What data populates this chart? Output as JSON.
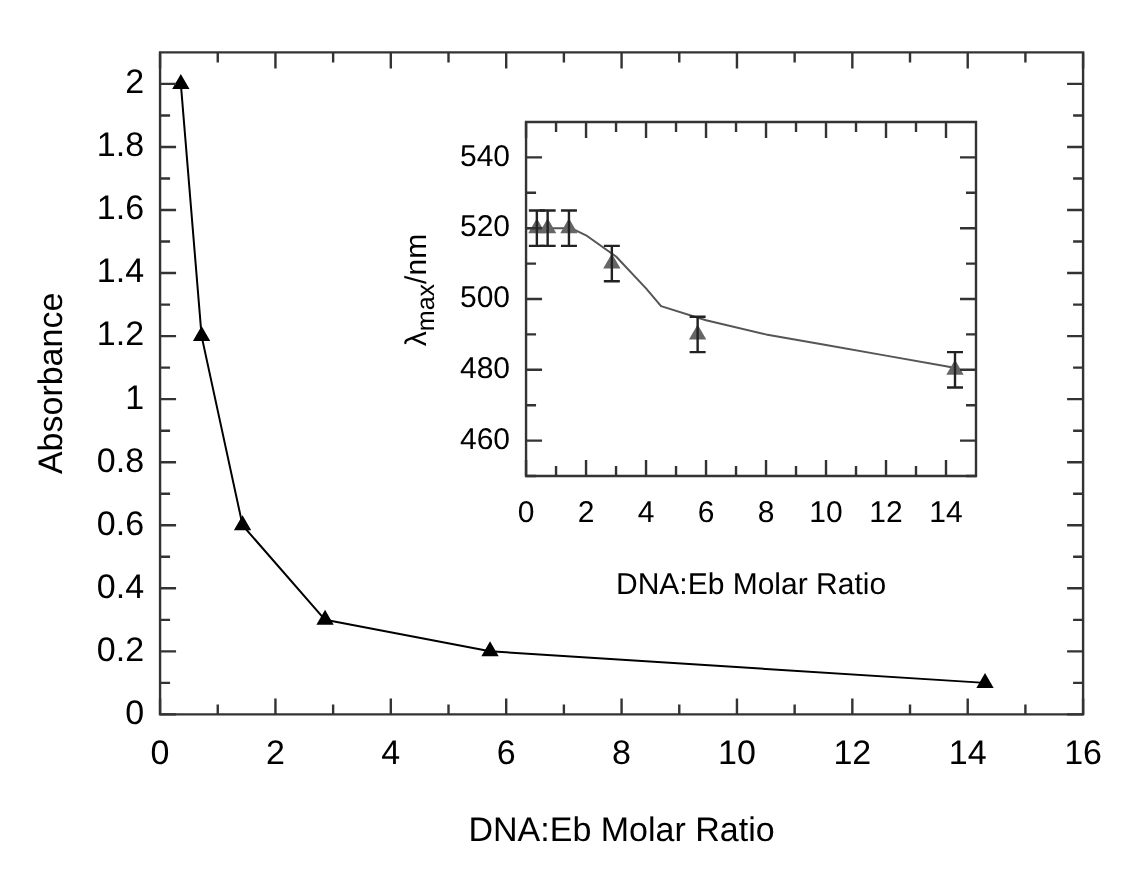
{
  "chart_data": [
    {
      "type": "line",
      "xlabel": "DNA:Eb Molar Ratio",
      "ylabel": "Absorbance",
      "x": [
        0.36,
        0.72,
        1.43,
        2.86,
        5.72,
        14.3
      ],
      "series": [
        {
          "color": "#000000",
          "values": [
            2,
            1.2,
            0.6,
            0.3,
            0.2,
            0.1
          ],
          "marker": "triangle"
        }
      ],
      "xlim": [
        0,
        16
      ],
      "xticks": [
        0,
        {
          "value": 1,
          "label": null
        },
        2,
        {
          "value": 3,
          "label": null
        },
        4,
        {
          "value": 5,
          "label": null
        },
        6,
        {
          "value": 7,
          "label": null
        },
        8,
        {
          "value": 9,
          "label": null
        },
        10,
        {
          "value": 11,
          "label": null
        },
        12,
        {
          "value": 13,
          "label": null
        },
        14,
        {
          "value": 15,
          "label": null
        },
        16
      ],
      "ylim": [
        0,
        2.1
      ],
      "yticks": [
        0,
        {
          "value": 0.1,
          "label": null
        },
        0.2,
        {
          "value": 0.3,
          "label": null
        },
        0.4,
        {
          "value": 0.5,
          "label": null
        },
        0.6,
        {
          "value": 0.7,
          "label": null
        },
        0.8,
        {
          "value": 0.9,
          "label": null
        },
        1,
        {
          "value": 1.1,
          "label": null
        },
        1.2,
        {
          "value": 1.3,
          "label": null
        },
        1.4,
        {
          "value": 1.5,
          "label": null
        },
        1.6,
        {
          "value": 1.7,
          "label": null
        },
        1.8,
        {
          "value": 1.9,
          "label": null
        },
        2
      ],
      "grid": false,
      "legend": false
    },
    {
      "type": "scatter",
      "xlabel": "DNA:Eb Molar Ratio",
      "ylabel": "λ$_{max}$/nm",
      "series": [
        {
          "color": "#666666",
          "marker": "triangle",
          "x": [
            0.36,
            0.72,
            1.43,
            2.86,
            5.72,
            14.3
          ],
          "values": [
            520,
            520,
            520,
            510,
            490,
            480
          ],
          "errors": [
            5,
            5,
            5,
            5,
            5,
            5
          ]
        },
        {
          "type": "line",
          "color": "#555555",
          "marker": "none",
          "x": [
            0,
            1,
            1.5,
            2,
            3,
            4,
            4.5,
            6,
            8,
            10,
            12,
            14,
            14.3
          ],
          "values": [
            520,
            520,
            520,
            518,
            512,
            503,
            498,
            494,
            490,
            487,
            484,
            481,
            480.5
          ]
        }
      ],
      "xlim": [
        0,
        15
      ],
      "xticks": [
        0,
        {
          "value": 1,
          "label": null
        },
        2,
        {
          "value": 3,
          "label": null
        },
        4,
        {
          "value": 5,
          "label": null
        },
        6,
        {
          "value": 7,
          "label": null
        },
        8,
        {
          "value": 9,
          "label": null
        },
        10,
        {
          "value": 11,
          "label": null
        },
        12,
        {
          "value": 13,
          "label": null
        },
        14
      ],
      "ylim": [
        450,
        550
      ],
      "yticks": [
        {
          "value": 450,
          "label": null
        },
        460,
        {
          "value": 470,
          "label": null
        },
        480,
        {
          "value": 490,
          "label": null
        },
        500,
        {
          "value": 510,
          "label": null
        },
        520,
        {
          "value": 530,
          "label": null
        },
        540
      ],
      "grid": false,
      "legend": false
    }
  ]
}
